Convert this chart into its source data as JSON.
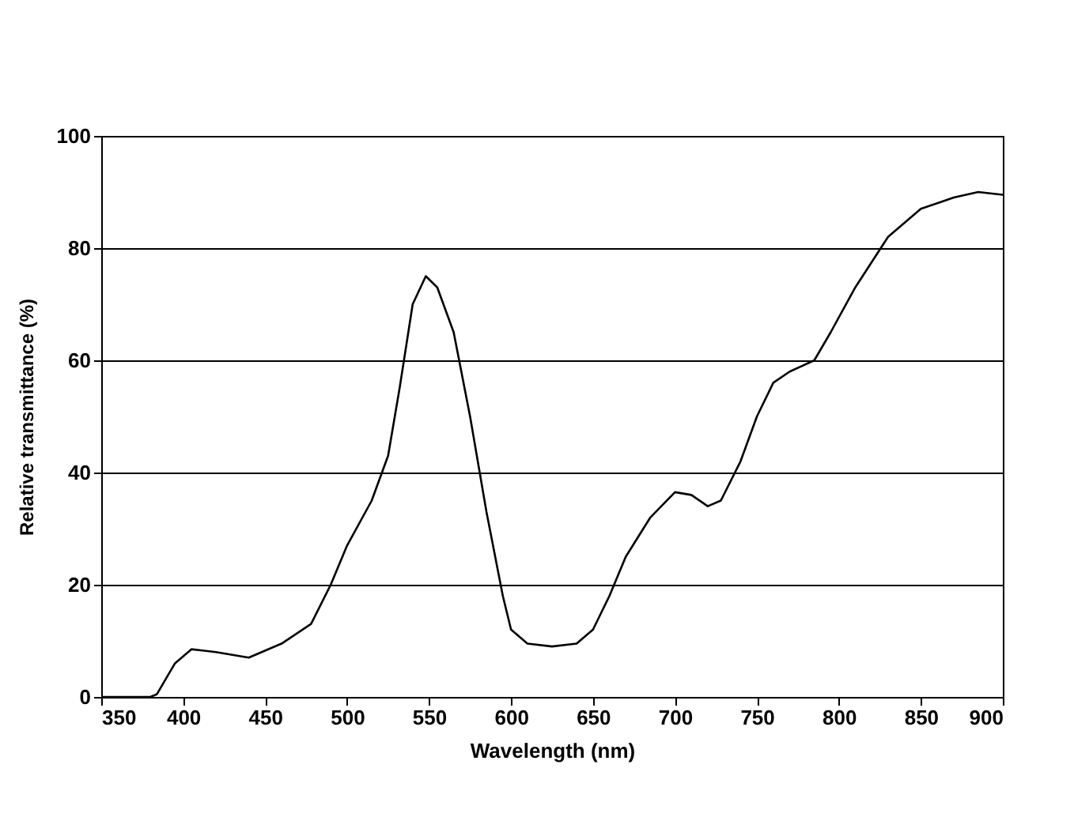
{
  "chart_data": {
    "type": "line",
    "xlabel": "Wavelength (nm)",
    "ylabel": "Relative transmittance (%)",
    "x": [
      350,
      380,
      384,
      395,
      405,
      420,
      440,
      460,
      478,
      490,
      500,
      515,
      525,
      532,
      540,
      548,
      555,
      565,
      575,
      585,
      595,
      600,
      610,
      625,
      640,
      650,
      660,
      670,
      685,
      700,
      710,
      720,
      728,
      740,
      750,
      760,
      770,
      785,
      795,
      810,
      830,
      850,
      870,
      885,
      900
    ],
    "series": [
      {
        "color": "#000000",
        "values": [
          0,
          0,
          0.5,
          6,
          8.5,
          8,
          7,
          9.5,
          13,
          20,
          27,
          35,
          43,
          55,
          70,
          75,
          73,
          65,
          50,
          33,
          18,
          12,
          9.5,
          9,
          9.5,
          12,
          18,
          25,
          32,
          36.5,
          36,
          34,
          35,
          42,
          50,
          56,
          58,
          60,
          65,
          73,
          82,
          87,
          89,
          90,
          89.5
        ]
      }
    ],
    "xlim": [
      350,
      900
    ],
    "xticks": [
      350,
      400,
      450,
      500,
      550,
      600,
      650,
      700,
      750,
      800,
      850,
      900
    ],
    "ylim": [
      0,
      100
    ],
    "yticks": [
      0,
      20,
      40,
      60,
      80,
      100
    ],
    "grid": "y",
    "legend": false,
    "marker": "none",
    "line_style": "solid"
  }
}
